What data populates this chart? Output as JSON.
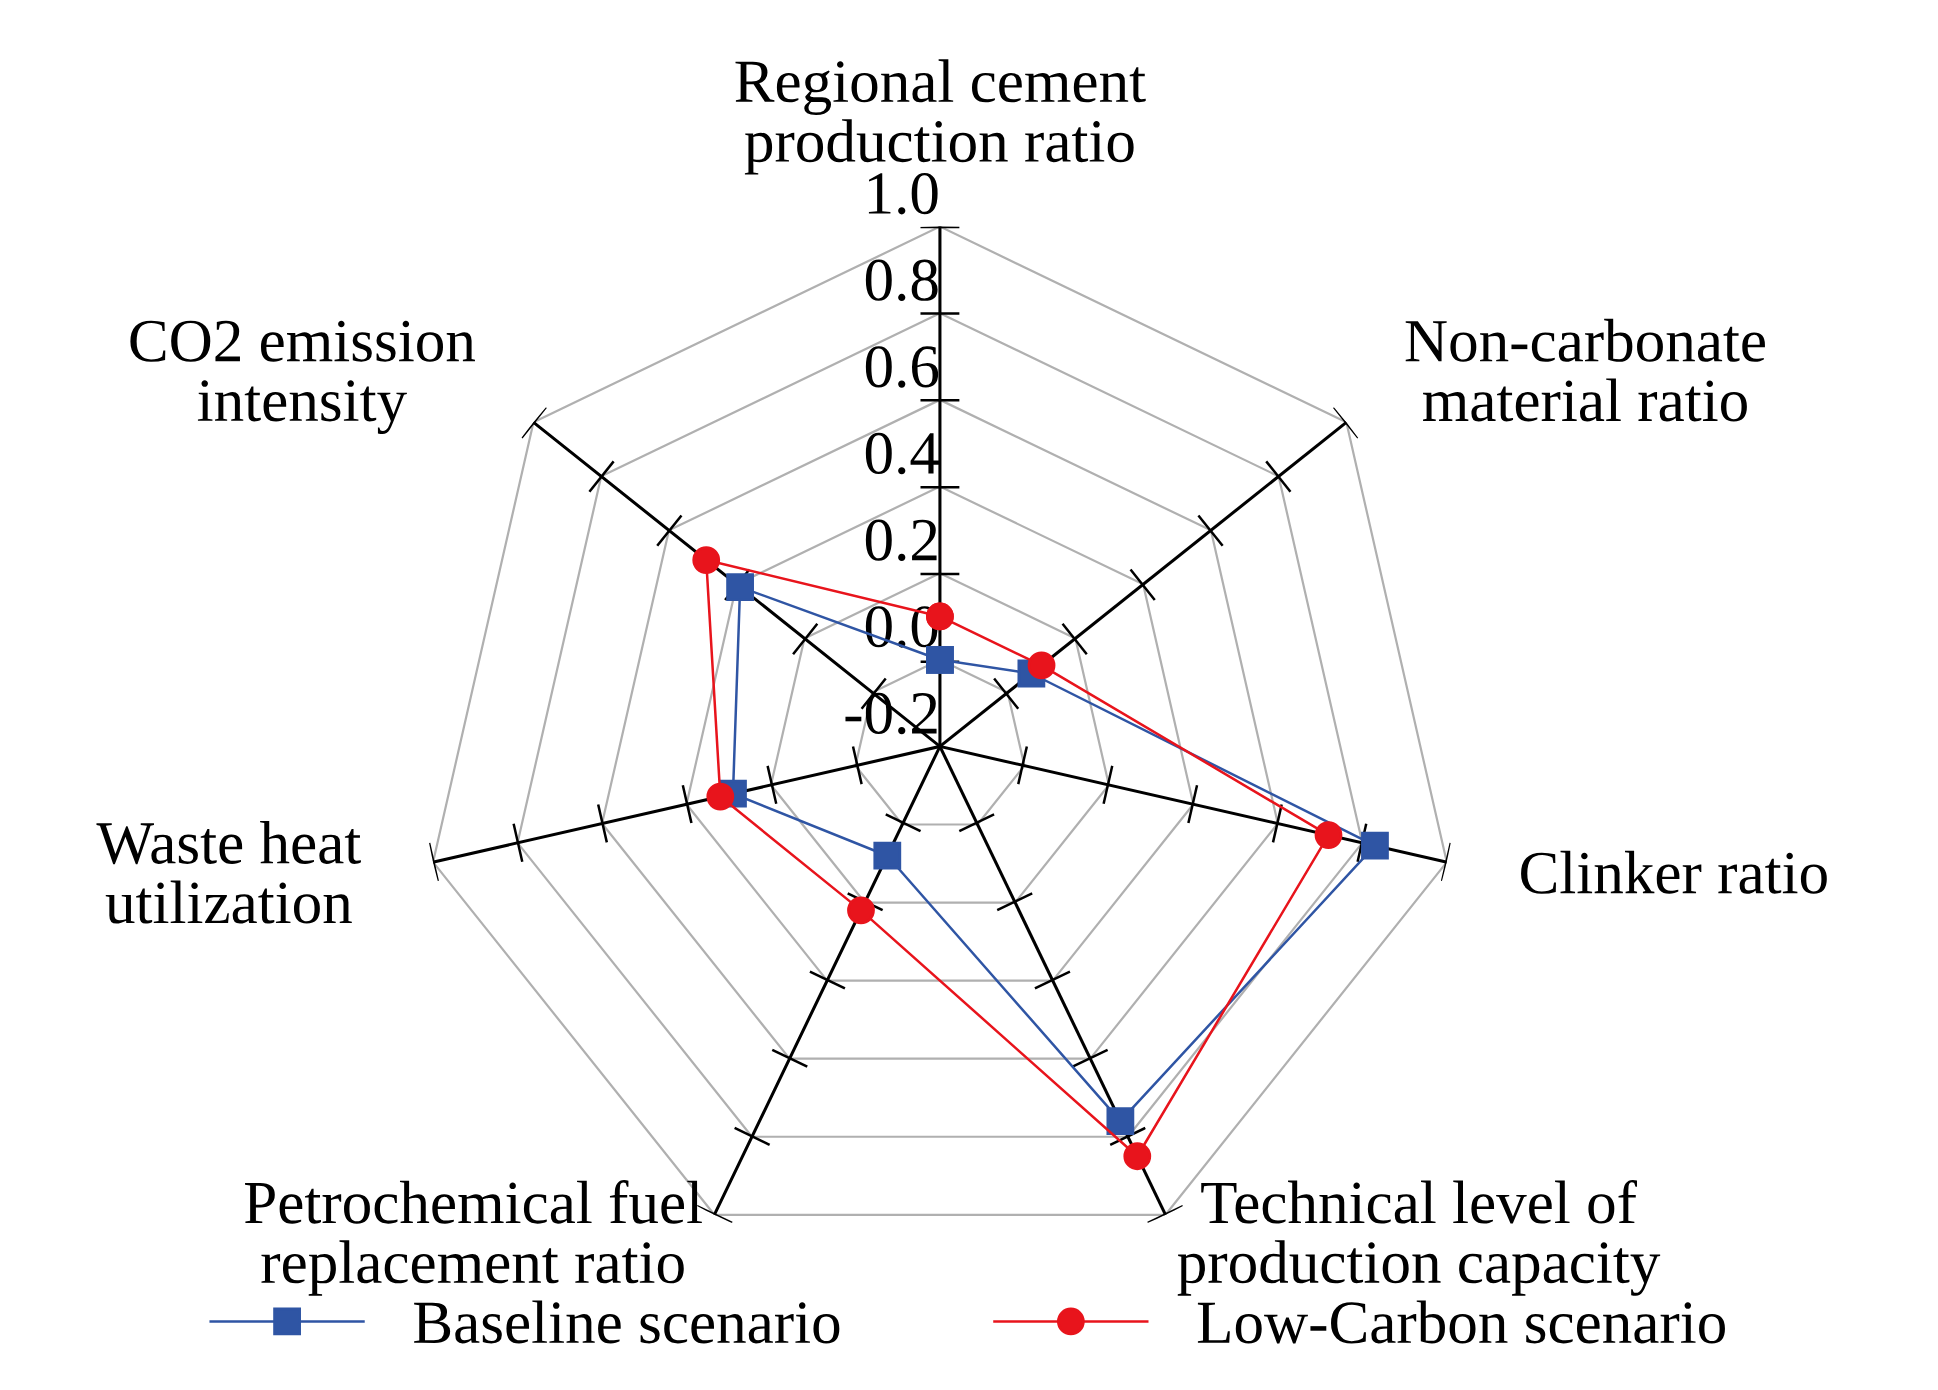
{
  "chart_data": {
    "type": "radar",
    "categories": [
      "Regional cement\nproduction ratio",
      "Non-carbonate\nmaterial ratio",
      "Clinker ratio",
      "Technical level of\nproduction capacity",
      "Petrochemical fuel\nreplacement ratio",
      "Waste heat\nutilization",
      "CO2 emission\nintensity"
    ],
    "series": [
      {
        "name": "Baseline scenario",
        "color": "#2f55a4",
        "marker": "square",
        "values": [
          0.0,
          0.07,
          0.83,
          0.76,
          0.08,
          0.29,
          0.39
        ]
      },
      {
        "name": "Low-Carbon scenario",
        "color": "#e8141c",
        "marker": "circle",
        "values": [
          0.1,
          0.1,
          0.72,
          0.85,
          0.22,
          0.32,
          0.49
        ]
      }
    ],
    "ylim": [
      -0.2,
      1.0
    ],
    "yticks": [
      {
        "value": -0.2,
        "label": "-0.2"
      },
      {
        "value": 0.0,
        "label": "0.0"
      },
      {
        "value": 0.2,
        "label": "0.2"
      },
      {
        "value": 0.4,
        "label": "0.4"
      },
      {
        "value": 0.6,
        "label": "0.6"
      },
      {
        "value": 0.8,
        "label": "0.8"
      },
      {
        "value": 1.0,
        "label": "1.0"
      }
    ],
    "grid": true,
    "legend": "bottom"
  }
}
